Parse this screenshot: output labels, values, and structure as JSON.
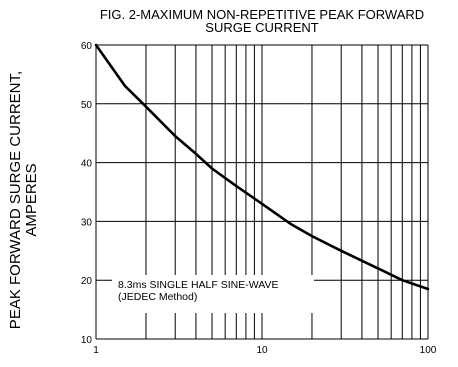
{
  "chart_data": {
    "type": "line",
    "title": [
      "FIG. 2-MAXIMUM NON-REPETITIVE PEAK FORWARD",
      "SURGE CURRENT"
    ],
    "ylabel": [
      "PEAK  FORWARD SURGE CURRENT,",
      "AMPERES"
    ],
    "xlabel": "",
    "x_scale": "log",
    "xlim": [
      1,
      100
    ],
    "ylim": [
      10,
      60
    ],
    "x_ticks": [
      "1",
      "10",
      "100"
    ],
    "y_ticks": [
      "10",
      "20",
      "30",
      "40",
      "50",
      "60"
    ],
    "grid": true,
    "annotation": [
      "8.3ms SINGLE HALF SINE-WAVE",
      "(JEDEC Method)"
    ],
    "series": [
      {
        "x": [
          1,
          1.5,
          2,
          3,
          4,
          5,
          7,
          10,
          15,
          20,
          30,
          50,
          70,
          100
        ],
        "y": [
          60,
          53,
          49.5,
          44.5,
          41.5,
          39,
          36,
          33,
          29.5,
          27.5,
          25,
          22,
          20,
          18.5
        ]
      }
    ]
  }
}
